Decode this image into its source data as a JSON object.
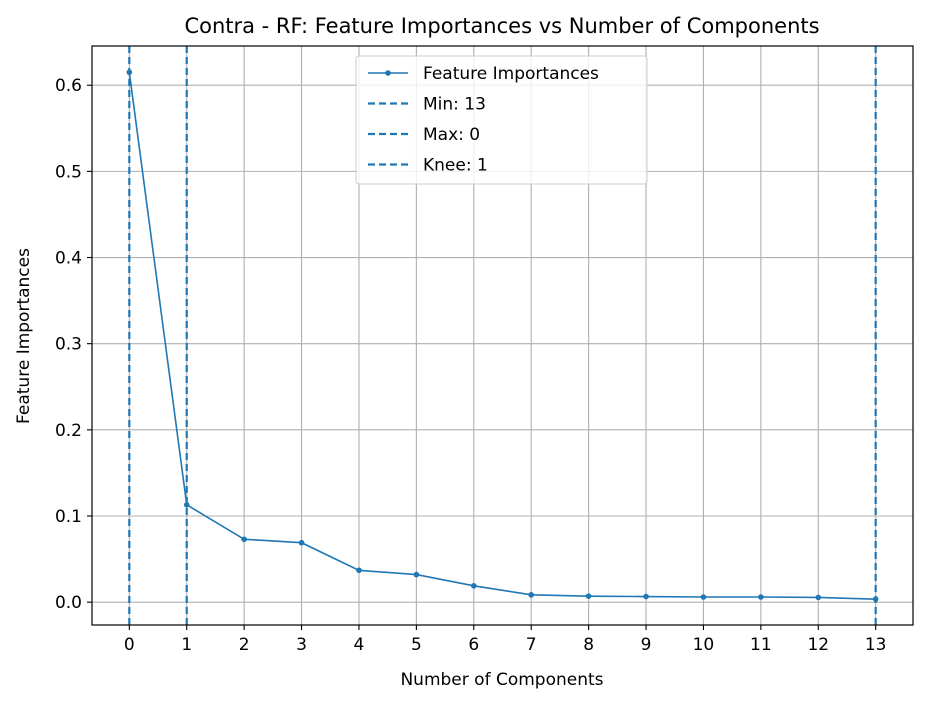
{
  "chart_data": {
    "type": "line",
    "title": "Contra - RF: Feature Importances vs Number of Components",
    "xlabel": "Number of Components",
    "ylabel": "Feature Importances",
    "xlim": [
      -0.65,
      13.65
    ],
    "ylim": [
      -0.0265,
      0.6455
    ],
    "grid": true,
    "legend_position": "upper-center",
    "x_ticks": [
      0,
      1,
      2,
      3,
      4,
      5,
      6,
      7,
      8,
      9,
      10,
      11,
      12,
      13
    ],
    "x_tick_labels": [
      "0",
      "1",
      "2",
      "3",
      "4",
      "5",
      "6",
      "7",
      "8",
      "9",
      "10",
      "11",
      "12",
      "13"
    ],
    "y_ticks": [
      0.0,
      0.1,
      0.2,
      0.3,
      0.4,
      0.5,
      0.6
    ],
    "y_tick_labels": [
      "0.0",
      "0.1",
      "0.2",
      "0.3",
      "0.4",
      "0.5",
      "0.6"
    ],
    "series": [
      {
        "name": "Feature Importances",
        "color": "#1f77b4",
        "x": [
          0,
          1,
          2,
          3,
          4,
          5,
          6,
          7,
          8,
          9,
          10,
          11,
          12,
          13
        ],
        "values": [
          0.615,
          0.113,
          0.073,
          0.069,
          0.037,
          0.032,
          0.019,
          0.0085,
          0.007,
          0.0065,
          0.006,
          0.006,
          0.0055,
          0.0035
        ]
      }
    ],
    "vertical_lines": [
      {
        "name": "Min: 13",
        "x": 13,
        "color": "#1f77b4",
        "style": "dashed"
      },
      {
        "name": "Max: 0",
        "x": 0,
        "color": "#1f77b4",
        "style": "dashed"
      },
      {
        "name": "Knee: 1",
        "x": 1,
        "color": "#1f77b4",
        "style": "dashed"
      }
    ]
  }
}
